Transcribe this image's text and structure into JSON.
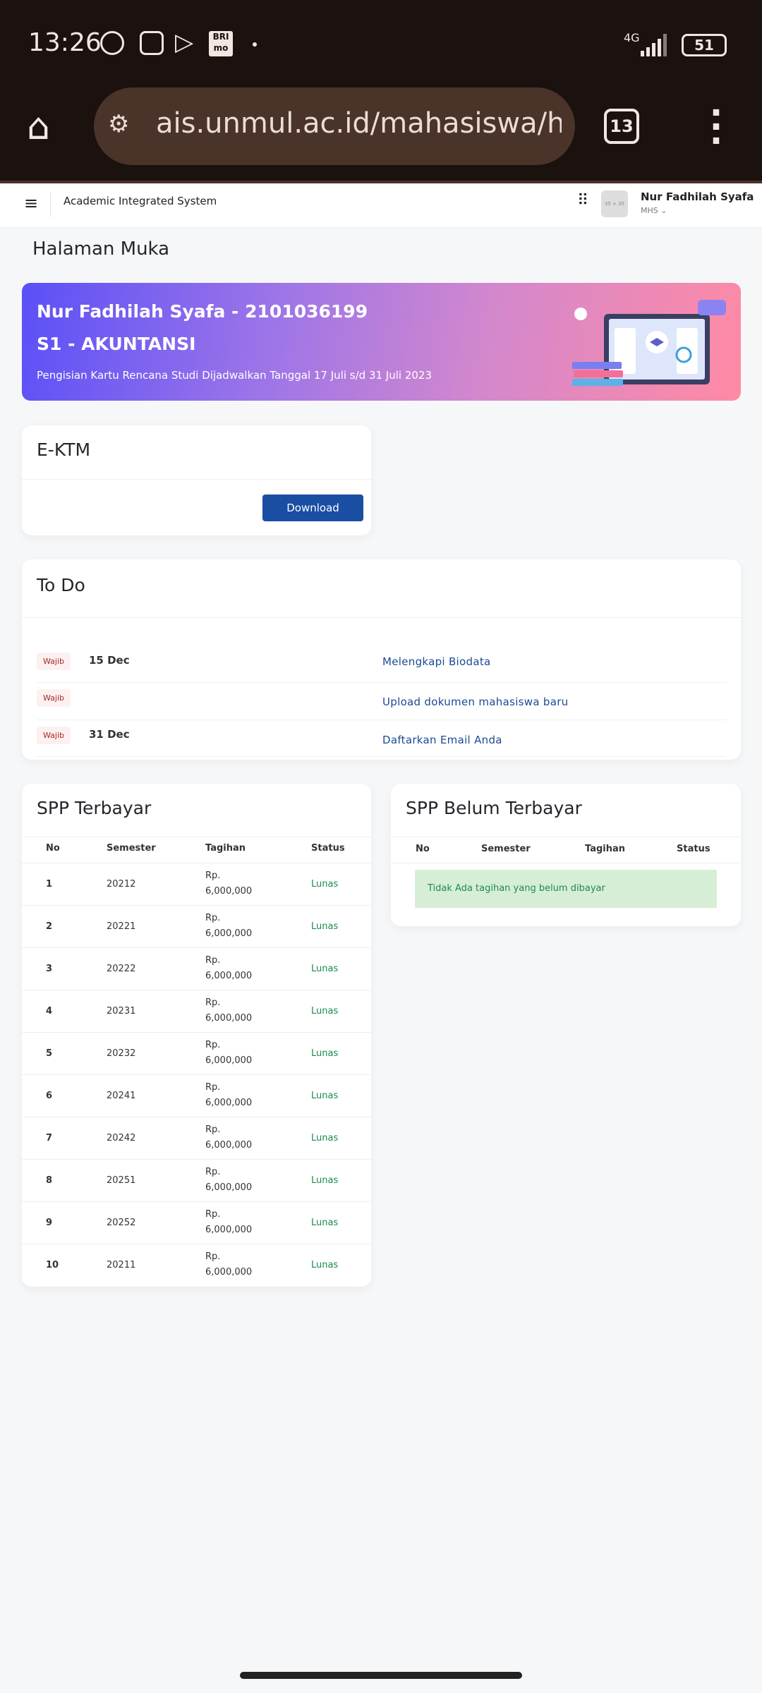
{
  "status_bar": {
    "time": "13:26",
    "network": "4G",
    "battery": "51",
    "bri_icon": "BRI mo"
  },
  "browser": {
    "url": "ais.unmul.ac.id/mahasiswa/h",
    "tab_count": "13"
  },
  "topnav": {
    "app_title": "Academic Integrated System",
    "avatar_placeholder": "35 × 35",
    "user_name": "Nur Fadhilah Syafa",
    "user_role": "MHS ⌄"
  },
  "page_title": "Halaman Muka",
  "banner": {
    "name_id": "Nur Fadhilah Syafa - 2101036199",
    "program": "S1 - AKUNTANSI",
    "note": "Pengisian Kartu Rencana Studi Dijadwalkan Tanggal 17 Juli s/d 31 Juli 2023"
  },
  "ektm": {
    "title": "E-KTM",
    "download_label": "Download"
  },
  "todo": {
    "title": "To Do",
    "items": [
      {
        "badge": "Wajib",
        "date": "15 Dec",
        "task": "Melengkapi Biodata"
      },
      {
        "badge": "Wajib",
        "date": "",
        "task": "Upload dokumen mahasiswa baru"
      },
      {
        "badge": "Wajib",
        "date": "31 Dec",
        "task": "Daftarkan Email Anda"
      }
    ]
  },
  "spp_paid": {
    "title": "SPP Terbayar",
    "columns": [
      "No",
      "Semester",
      "Tagihan",
      "Status"
    ],
    "rows": [
      {
        "no": "1",
        "semester": "20212",
        "tagihan_1": "Rp.",
        "tagihan_2": "6,000,000",
        "status": "Lunas"
      },
      {
        "no": "2",
        "semester": "20221",
        "tagihan_1": "Rp.",
        "tagihan_2": "6,000,000",
        "status": "Lunas"
      },
      {
        "no": "3",
        "semester": "20222",
        "tagihan_1": "Rp.",
        "tagihan_2": "6,000,000",
        "status": "Lunas"
      },
      {
        "no": "4",
        "semester": "20231",
        "tagihan_1": "Rp.",
        "tagihan_2": "6,000,000",
        "status": "Lunas"
      },
      {
        "no": "5",
        "semester": "20232",
        "tagihan_1": "Rp.",
        "tagihan_2": "6,000,000",
        "status": "Lunas"
      },
      {
        "no": "6",
        "semester": "20241",
        "tagihan_1": "Rp.",
        "tagihan_2": "6,000,000",
        "status": "Lunas"
      },
      {
        "no": "7",
        "semester": "20242",
        "tagihan_1": "Rp.",
        "tagihan_2": "6,000,000",
        "status": "Lunas"
      },
      {
        "no": "8",
        "semester": "20251",
        "tagihan_1": "Rp.",
        "tagihan_2": "6,000,000",
        "status": "Lunas"
      },
      {
        "no": "9",
        "semester": "20252",
        "tagihan_1": "Rp.",
        "tagihan_2": "6,000,000",
        "status": "Lunas"
      },
      {
        "no": "10",
        "semester": "20211",
        "tagihan_1": "Rp.",
        "tagihan_2": "6,000,000",
        "status": "Lunas"
      }
    ]
  },
  "spp_unpaid": {
    "title": "SPP Belum Terbayar",
    "columns": [
      "No",
      "Semester",
      "Tagihan",
      "Status"
    ],
    "empty_message": "Tidak Ada tagihan yang belum dibayar"
  },
  "colors": {
    "accent": "#1a4ea3",
    "link": "#1a4a94",
    "success": "#1c8a4b",
    "badge_text": "#a52828",
    "statusbar": "#1b110e"
  }
}
